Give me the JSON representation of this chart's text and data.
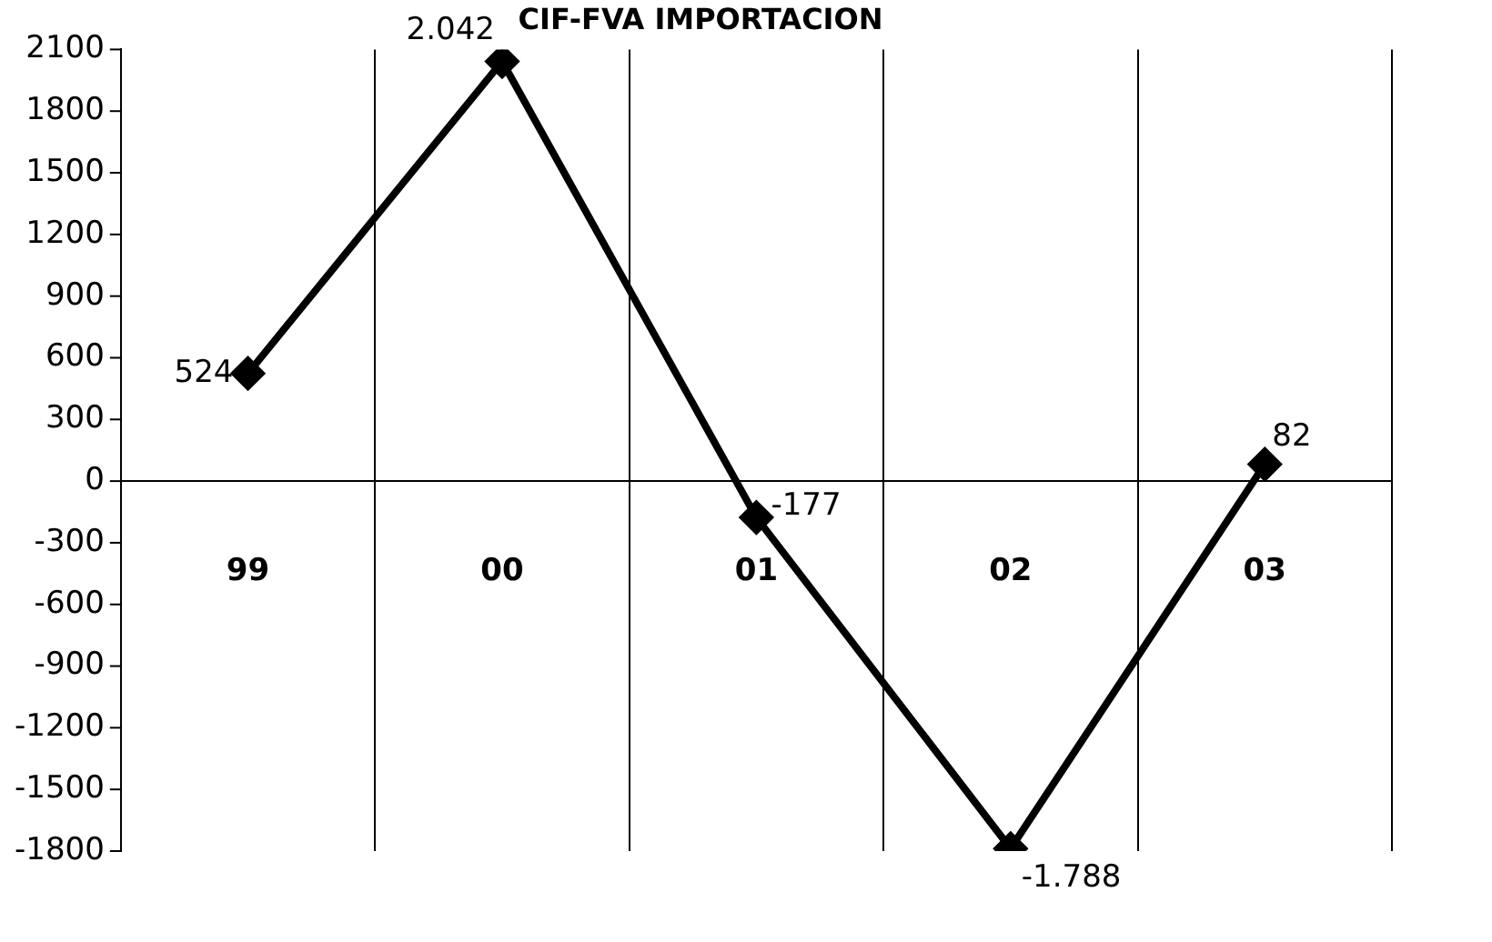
{
  "chart_data": {
    "type": "line",
    "title": "CIF-FVA IMPORTACION",
    "categories": [
      "99",
      "00",
      "01",
      "02",
      "03"
    ],
    "series": [
      {
        "color": "#000000",
        "values": [
          524,
          2042,
          -177,
          -1788,
          82
        ],
        "value_labels": [
          "524",
          "2.042",
          "-177",
          "-1.788",
          "82"
        ]
      }
    ],
    "ylim": [
      -1800,
      2100
    ],
    "yticks": [
      -1800,
      -1500,
      -1200,
      -900,
      -600,
      -300,
      0,
      300,
      600,
      900,
      1200,
      1500,
      1800,
      2100
    ],
    "grid": "x",
    "legend": false,
    "marker": "diamond",
    "line_style": "solid"
  }
}
